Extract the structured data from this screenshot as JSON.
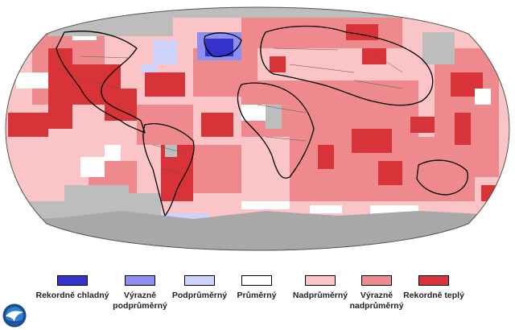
{
  "map": {
    "name": "world-temperature-anomaly-map",
    "colors": {
      "ocean_gray": "#bdbdbd",
      "antarctica": "#a8a8a8",
      "land_border": "#555555",
      "coast": "#000000"
    }
  },
  "legend": {
    "items": [
      {
        "label": "Rekordně chladný",
        "color": "#3333cc"
      },
      {
        "label": "Výrazně podprůměrný",
        "color": "#8c8ff0"
      },
      {
        "label": "Podprůměrný",
        "color": "#cdd2fb"
      },
      {
        "label": "Průměrný",
        "color": "#ffffff"
      },
      {
        "label": "Nadprůměrný",
        "color": "#fbc4c6"
      },
      {
        "label": "Výrazně nadprůměrný",
        "color": "#ee8a8e"
      },
      {
        "label": "Rekordně teplý",
        "color": "#d83338"
      }
    ]
  },
  "logo": {
    "name": "noaa-logo",
    "text": "NOAA",
    "colors": {
      "outer": "#1a4c8c",
      "inner": "#2a7fd0",
      "bird": "#ffffff"
    }
  }
}
